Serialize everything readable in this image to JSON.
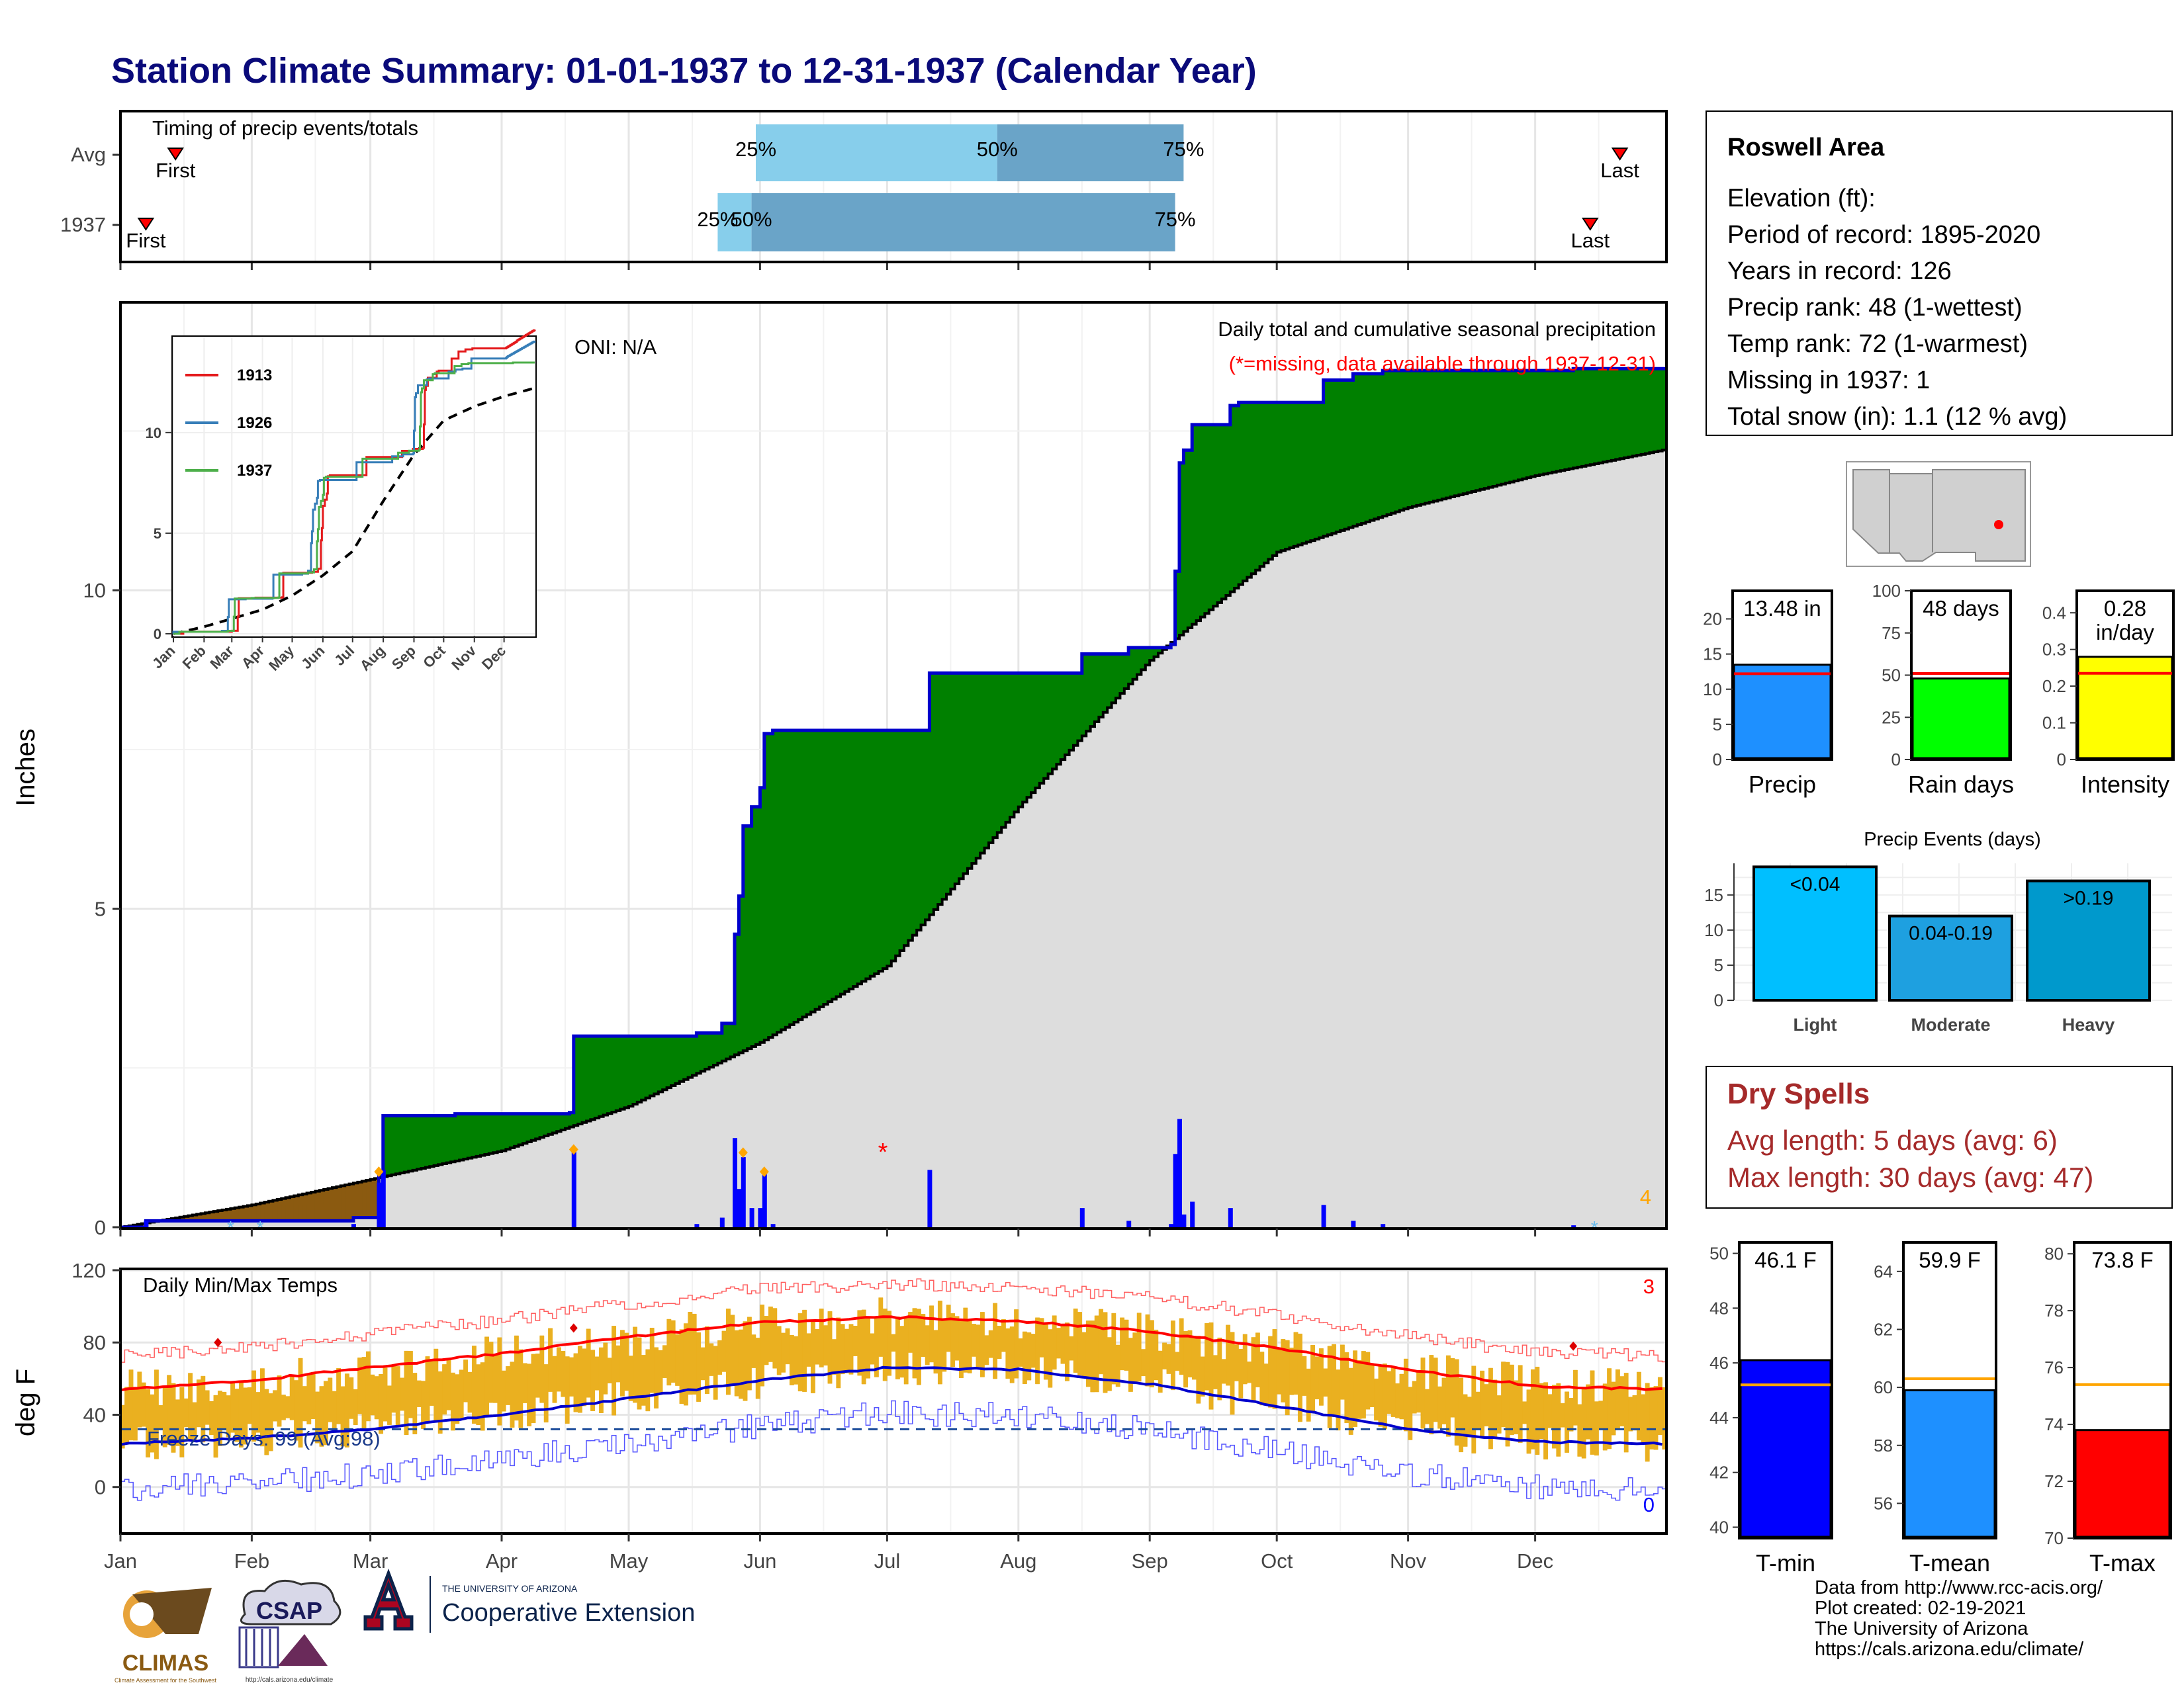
{
  "title": "Station Climate Summary: 01-01-1937 to 12-31-1937 (Calendar Year)",
  "colors": {
    "title": "#0a0a7a",
    "precip_green": "#008000",
    "precip_brown": "#8B5A10",
    "cumulative_line": "#0000cc",
    "avg_fill": "#dddddd",
    "quartile_light": "#87ceeb",
    "quartile_dark": "#6aa4c8",
    "temp_bar": "#eab020",
    "tmax_avg": "#ff0000",
    "tmin_avg": "#0000cc",
    "dry_spell_text": "#a52a2a"
  },
  "timing_panel": {
    "title": "Timing of precip events/totals",
    "rows": [
      {
        "label": "Avg",
        "first_label": "First",
        "last_label": "Last",
        "first_date": "1937-01-14",
        "last_date": "1937-12-21",
        "q25_date": "1937-05-31",
        "q50_date": "1937-07-27",
        "q75_date": "1937-09-09",
        "q25_label": "25%",
        "q50_label": "50%",
        "q75_label": "75%"
      },
      {
        "label": "1937",
        "first_label": "First",
        "last_label": "Last",
        "first_date": "1937-01-07",
        "last_date": "1937-12-14",
        "q25_date": "1937-05-22",
        "q50_date": "1937-05-30",
        "q75_date": "1937-09-07",
        "q25_label": "25%",
        "q50_label": "50%",
        "q75_label": "75%"
      }
    ]
  },
  "precip_panel": {
    "ylabel": "Inches",
    "oni": "ONI: N/A",
    "heading": "Daily total and cumulative seasonal precipitation",
    "missing_note": "(*=missing, data available through 1937-12-31)",
    "count_right": "4",
    "yticks": [
      0,
      5,
      10
    ]
  },
  "inset": {
    "legend": [
      "1913",
      "1926",
      "1937"
    ],
    "legend_colors": [
      "#e41a1c",
      "#377eb8",
      "#4daf4a"
    ],
    "months": [
      "Jan",
      "Feb",
      "Mar",
      "Apr",
      "May",
      "Jun",
      "Jul",
      "Aug",
      "Sep",
      "Oct",
      "Nov",
      "Dec"
    ],
    "yticks": [
      0,
      5,
      10
    ]
  },
  "temp_panel": {
    "ylabel": "deg F",
    "heading": "Daily Min/Max Temps",
    "freeze": "Freeze Days: 99 (Avg:98)",
    "count_hot": "3",
    "count_cold": "0",
    "yticks": [
      0,
      40,
      80,
      120
    ]
  },
  "x_months": [
    "Jan",
    "Feb",
    "Mar",
    "Apr",
    "May",
    "Jun",
    "Jul",
    "Aug",
    "Sep",
    "Oct",
    "Nov",
    "Dec"
  ],
  "info_box": {
    "station": "Roswell Area",
    "elevation": "Elevation (ft):",
    "period": "Period of record: 1895-2020",
    "years": "Years in record: 126",
    "precip_rank": "Precip rank: 48 (1-wettest)",
    "temp_rank": "Temp rank: 72 (1-warmest)",
    "missing": "Missing in 1937: 1",
    "snow": "Total snow (in): 1.1 (12 % avg)"
  },
  "precip_summary": [
    {
      "label": "Precip",
      "value_text": "13.48 in",
      "value": 13.48,
      "avg": 12.2,
      "ymax": 24,
      "ticks": [
        0,
        5,
        10,
        15,
        20
      ],
      "color": "#1e90ff"
    },
    {
      "label": "Rain days",
      "value_text": "48 days",
      "value": 48,
      "avg": 51,
      "ymax": 100,
      "ticks": [
        0,
        25,
        50,
        75,
        100
      ],
      "color": "#00ff00"
    },
    {
      "label": "Intensity",
      "value_text": "0.28\nin/day",
      "value": 0.28,
      "avg": 0.235,
      "ymax": 0.46,
      "ticks": [
        0.0,
        0.1,
        0.2,
        0.3,
        0.4
      ],
      "color": "#ffff00"
    }
  ],
  "precip_events": {
    "title": "Precip Events (days)",
    "categories": [
      "Light",
      "Moderate",
      "Heavy"
    ],
    "labels": [
      "<0.04",
      "0.04-0.19",
      ">0.19"
    ],
    "values": [
      19,
      12,
      17
    ],
    "colors": [
      "#00bfff",
      "#1ea0e0",
      "#0099cc"
    ],
    "ticks": [
      0,
      5,
      10,
      15
    ]
  },
  "dry_spells": {
    "title": "Dry Spells",
    "avg": "Avg length: 5 days (avg: 6)",
    "max": "Max length: 30 days (avg: 47)"
  },
  "temp_summary": [
    {
      "label": "T-min",
      "value_text": "46.1 F",
      "value": 46.1,
      "avg": 45.2,
      "ymin": 39.6,
      "ymax": 50.4,
      "ticks": [
        40,
        42,
        44,
        46,
        48,
        50
      ],
      "color": "#0000ff"
    },
    {
      "label": "T-mean",
      "value_text": "59.9 F",
      "value": 59.9,
      "avg": 60.3,
      "ymin": 54.8,
      "ymax": 65.0,
      "ticks": [
        56,
        58,
        60,
        62,
        64
      ],
      "color": "#1e90ff"
    },
    {
      "label": "T-max",
      "value_text": "73.8 F",
      "value": 73.8,
      "avg": 75.4,
      "ymin": 70.0,
      "ymax": 80.4,
      "ticks": [
        70,
        72,
        74,
        76,
        78,
        80
      ],
      "color": "#ff0000"
    }
  ],
  "logos": {
    "climas": "CLIMAS",
    "climas_sub": "Climate Assessment for the Southwest",
    "csap": "CSAP",
    "csap_url": "http://cals.arizona.edu/climate",
    "ua_small": "THE UNIVERSITY OF ARIZONA",
    "ua_big": "Cooperative Extension"
  },
  "footer": [
    "Data from http://www.rcc-acis.org/",
    "Plot created: 02-19-2021",
    "The University of Arizona",
    "https://cals.arizona.edu/climate/"
  ],
  "chart_data": [
    {
      "type": "area",
      "title": "Daily total and cumulative seasonal precipitation",
      "ylabel": "Inches",
      "ylim": [
        0,
        14.5
      ],
      "cumulative_1937_steps": [
        [
          "01-01",
          0.0
        ],
        [
          "01-07",
          0.1
        ],
        [
          "02-25",
          0.15
        ],
        [
          "03-03",
          0.85
        ],
        [
          "03-04",
          1.75
        ],
        [
          "03-21",
          1.78
        ],
        [
          "04-17",
          1.8
        ],
        [
          "04-18",
          3.0
        ],
        [
          "05-17",
          3.05
        ],
        [
          "05-23",
          3.2
        ],
        [
          "05-26",
          4.6
        ],
        [
          "05-27",
          5.2
        ],
        [
          "05-28",
          6.3
        ],
        [
          "05-30",
          6.6
        ],
        [
          "06-01",
          6.9
        ],
        [
          "06-02",
          7.75
        ],
        [
          "06-04",
          7.8
        ],
        [
          "07-01",
          7.8
        ],
        [
          "07-10",
          7.8
        ],
        [
          "07-11",
          8.7
        ],
        [
          "08-14",
          8.7
        ],
        [
          "08-16",
          9.0
        ],
        [
          "08-27",
          9.1
        ],
        [
          "09-06",
          9.15
        ],
        [
          "09-07",
          10.3
        ],
        [
          "09-08",
          12.0
        ],
        [
          "09-09",
          12.2
        ],
        [
          "09-11",
          12.6
        ],
        [
          "09-15",
          12.6
        ],
        [
          "09-20",
          12.9
        ],
        [
          "09-22",
          12.95
        ],
        [
          "10-09",
          12.95
        ],
        [
          "10-12",
          13.3
        ],
        [
          "10-19",
          13.4
        ],
        [
          "10-26",
          13.45
        ],
        [
          "11-16",
          13.45
        ],
        [
          "12-10",
          13.48
        ],
        [
          "12-31",
          13.48
        ]
      ],
      "average_cumulative": [
        [
          "01-01",
          0.0
        ],
        [
          "02-01",
          0.35
        ],
        [
          "03-01",
          0.75
        ],
        [
          "04-01",
          1.2
        ],
        [
          "05-01",
          1.9
        ],
        [
          "06-01",
          2.9
        ],
        [
          "07-01",
          4.1
        ],
        [
          "08-01",
          6.6
        ],
        [
          "09-01",
          8.9
        ],
        [
          "10-01",
          10.6
        ],
        [
          "11-01",
          11.3
        ],
        [
          "12-01",
          11.8
        ],
        [
          "12-31",
          12.2
        ]
      ],
      "daily_precip": [
        [
          "01-07",
          0.1
        ],
        [
          "02-25",
          0.05
        ],
        [
          "03-03",
          0.7
        ],
        [
          "03-04",
          0.9
        ],
        [
          "04-18",
          1.2
        ],
        [
          "05-17",
          0.05
        ],
        [
          "05-23",
          0.15
        ],
        [
          "05-26",
          1.4
        ],
        [
          "05-27",
          0.6
        ],
        [
          "05-28",
          1.1
        ],
        [
          "05-30",
          0.3
        ],
        [
          "06-01",
          0.3
        ],
        [
          "06-02",
          0.85
        ],
        [
          "06-04",
          0.05
        ],
        [
          "07-11",
          0.9
        ],
        [
          "08-16",
          0.3
        ],
        [
          "08-27",
          0.1
        ],
        [
          "09-06",
          0.05
        ],
        [
          "09-07",
          1.15
        ],
        [
          "09-08",
          1.7
        ],
        [
          "09-09",
          0.2
        ],
        [
          "09-11",
          0.4
        ],
        [
          "09-20",
          0.3
        ],
        [
          "10-12",
          0.35
        ],
        [
          "10-19",
          0.1
        ],
        [
          "10-26",
          0.05
        ],
        [
          "12-10",
          0.03
        ]
      ],
      "missing_day": "06-30"
    },
    {
      "type": "line",
      "title": "Daily Min/Max Temps",
      "ylabel": "deg F",
      "ylim": [
        -25,
        120
      ],
      "avg_tmax": [
        [
          "01-01",
          54
        ],
        [
          "02-01",
          59
        ],
        [
          "03-01",
          66
        ],
        [
          "04-01",
          74
        ],
        [
          "05-01",
          83
        ],
        [
          "06-01",
          91
        ],
        [
          "07-01",
          94
        ],
        [
          "08-01",
          92
        ],
        [
          "09-01",
          86
        ],
        [
          "10-01",
          77
        ],
        [
          "11-01",
          65
        ],
        [
          "12-01",
          56
        ],
        [
          "12-31",
          54
        ]
      ],
      "avg_tmin": [
        [
          "01-01",
          24
        ],
        [
          "02-01",
          27
        ],
        [
          "03-01",
          32
        ],
        [
          "04-01",
          40
        ],
        [
          "05-01",
          49
        ],
        [
          "06-01",
          59
        ],
        [
          "07-01",
          66
        ],
        [
          "08-01",
          65
        ],
        [
          "09-01",
          57
        ],
        [
          "10-01",
          45
        ],
        [
          "11-01",
          32
        ],
        [
          "12-01",
          25
        ],
        [
          "12-31",
          24
        ]
      ],
      "freeze_line": 32
    }
  ]
}
